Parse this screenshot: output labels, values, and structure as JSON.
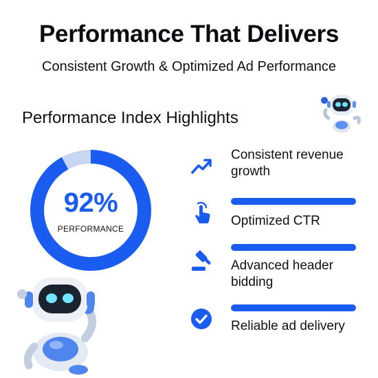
{
  "header": {
    "title": "Performance That Delivers",
    "subtitle": "Consistent Growth & Optimized Ad Performance"
  },
  "section": {
    "heading": "Performance Index Highlights"
  },
  "performance_meter": {
    "value_text": "92%",
    "label": "PERFORMANCE",
    "percent": 92,
    "accent_color": "#1a5bf0",
    "track_color": "#c8d6f3"
  },
  "features": [
    {
      "icon": "trending-up-icon",
      "text": "Consistent revenue growth"
    },
    {
      "icon": "tap-hand-icon",
      "text": "Optimized CTR"
    },
    {
      "icon": "gavel-icon",
      "text": "Advanced header bidding"
    },
    {
      "icon": "check-circle-icon",
      "text": "Reliable ad delivery"
    }
  ],
  "colors": {
    "accent": "#1a5bf0",
    "text": "#111111",
    "background": "#ffffff"
  }
}
